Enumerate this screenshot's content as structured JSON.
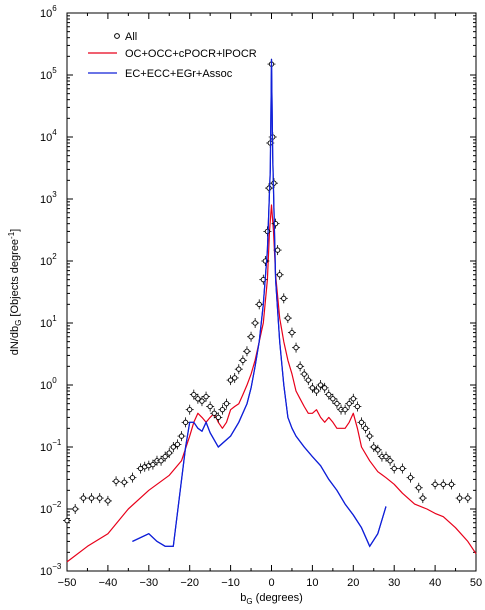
{
  "chart_data": {
    "type": "scatter",
    "xlabel": "b",
    "xlabel_sub": "G",
    "xlabel_suffix": " (degrees)",
    "ylabel_main": "dN/db",
    "ylabel_sub": "G",
    "ylabel_rest": " [Objects degree",
    "ylabel_sup": "-1",
    "ylabel_end": "]",
    "xlim": [
      -50,
      50
    ],
    "ylim": [
      0.001,
      1000000
    ],
    "yscale": "log",
    "grid": false,
    "legend_position": "top-left",
    "x_ticks": [
      -50,
      -40,
      -30,
      -20,
      -10,
      0,
      10,
      20,
      30,
      40,
      50
    ],
    "x_tick_labels": [
      "−50",
      "−40",
      "−30",
      "−20",
      "−10",
      "0",
      "10",
      "20",
      "30",
      "40",
      "50"
    ],
    "y_ticks": [
      {
        "value": 0.001,
        "base": "10",
        "exp": "−3"
      },
      {
        "value": 0.01,
        "base": "10",
        "exp": "−2"
      },
      {
        "value": 0.1,
        "base": "10",
        "exp": "−1"
      },
      {
        "value": 1,
        "base": "10",
        "exp": "0"
      },
      {
        "value": 10,
        "base": "10",
        "exp": "1"
      },
      {
        "value": 100,
        "base": "10",
        "exp": "2"
      },
      {
        "value": 1000,
        "base": "10",
        "exp": "3"
      },
      {
        "value": 10000,
        "base": "10",
        "exp": "4"
      },
      {
        "value": 100000,
        "base": "10",
        "exp": "5"
      },
      {
        "value": 1000000,
        "base": "10",
        "exp": "6"
      }
    ],
    "series": [
      {
        "name": "All",
        "style": "points",
        "color": "#000000",
        "points": [
          [
            -50,
            0.0065
          ],
          [
            -48,
            0.01
          ],
          [
            -46,
            0.015
          ],
          [
            -44,
            0.015
          ],
          [
            -42,
            0.015
          ],
          [
            -40,
            0.0135
          ],
          [
            -38,
            0.028
          ],
          [
            -36,
            0.027
          ],
          [
            -34,
            0.032
          ],
          [
            -32,
            0.045
          ],
          [
            -31,
            0.048
          ],
          [
            -30,
            0.05
          ],
          [
            -29,
            0.052
          ],
          [
            -28,
            0.06
          ],
          [
            -27,
            0.06
          ],
          [
            -26,
            0.07
          ],
          [
            -25,
            0.08
          ],
          [
            -24,
            0.1
          ],
          [
            -23,
            0.11
          ],
          [
            -22,
            0.15
          ],
          [
            -21,
            0.25
          ],
          [
            -20,
            0.4
          ],
          [
            -19,
            0.7
          ],
          [
            -18,
            0.6
          ],
          [
            -17,
            0.55
          ],
          [
            -16,
            0.65
          ],
          [
            -15,
            0.45
          ],
          [
            -14,
            0.35
          ],
          [
            -13,
            0.3
          ],
          [
            -12,
            0.4
          ],
          [
            -11,
            0.5
          ],
          [
            -10,
            1.2
          ],
          [
            -9,
            1.3
          ],
          [
            -8,
            1.8
          ],
          [
            -7,
            2.5
          ],
          [
            -6,
            3.5
          ],
          [
            -5,
            6.0
          ],
          [
            -4,
            10
          ],
          [
            -3,
            20
          ],
          [
            -2,
            50
          ],
          [
            -1.5,
            100
          ],
          [
            -1,
            300
          ],
          [
            -0.6,
            1500
          ],
          [
            -0.3,
            8000
          ],
          [
            0,
            150000
          ],
          [
            0.3,
            10000
          ],
          [
            0.6,
            1800
          ],
          [
            1,
            400
          ],
          [
            1.5,
            150
          ],
          [
            2,
            60
          ],
          [
            3,
            25
          ],
          [
            4,
            12
          ],
          [
            5,
            7
          ],
          [
            6,
            4
          ],
          [
            7,
            2
          ],
          [
            8,
            1.5
          ],
          [
            9,
            1.2
          ],
          [
            10,
            0.9
          ],
          [
            11,
            0.8
          ],
          [
            12,
            1.0
          ],
          [
            13,
            0.9
          ],
          [
            14,
            0.7
          ],
          [
            15,
            0.6
          ],
          [
            16,
            0.5
          ],
          [
            17,
            0.4
          ],
          [
            18,
            0.4
          ],
          [
            19,
            0.5
          ],
          [
            20,
            0.6
          ],
          [
            21,
            0.45
          ],
          [
            22,
            0.25
          ],
          [
            23,
            0.2
          ],
          [
            24,
            0.15
          ],
          [
            25,
            0.1
          ],
          [
            26,
            0.09
          ],
          [
            27,
            0.07
          ],
          [
            28,
            0.07
          ],
          [
            29,
            0.06
          ],
          [
            30,
            0.045
          ],
          [
            32,
            0.045
          ],
          [
            34,
            0.032
          ],
          [
            36,
            0.022
          ],
          [
            37,
            0.015
          ],
          [
            40,
            0.025
          ],
          [
            42,
            0.025
          ],
          [
            44,
            0.025
          ],
          [
            46,
            0.015
          ],
          [
            48,
            0.015
          ]
        ]
      },
      {
        "name": "OC+OCC+cPOCR+lPOCR",
        "style": "line",
        "color": "#e8001a",
        "points": [
          [
            -50,
            0.0014
          ],
          [
            -45,
            0.0025
          ],
          [
            -40,
            0.004
          ],
          [
            -35,
            0.01
          ],
          [
            -30,
            0.02
          ],
          [
            -25,
            0.035
          ],
          [
            -22,
            0.06
          ],
          [
            -20,
            0.15
          ],
          [
            -19,
            0.25
          ],
          [
            -18,
            0.35
          ],
          [
            -17,
            0.3
          ],
          [
            -16,
            0.25
          ],
          [
            -15,
            0.3
          ],
          [
            -14,
            0.35
          ],
          [
            -13,
            0.25
          ],
          [
            -12,
            0.2
          ],
          [
            -11,
            0.25
          ],
          [
            -10,
            0.4
          ],
          [
            -9,
            0.45
          ],
          [
            -8,
            0.5
          ],
          [
            -7,
            0.7
          ],
          [
            -6,
            1.0
          ],
          [
            -5,
            1.5
          ],
          [
            -4,
            2.5
          ],
          [
            -3,
            5
          ],
          [
            -2,
            10
          ],
          [
            -1,
            50
          ],
          [
            -0.5,
            300
          ],
          [
            0,
            800
          ],
          [
            0.5,
            300
          ],
          [
            1,
            60
          ],
          [
            2,
            12
          ],
          [
            3,
            5
          ],
          [
            4,
            2.5
          ],
          [
            5,
            1.5
          ],
          [
            6,
            0.8
          ],
          [
            7,
            0.6
          ],
          [
            8,
            0.45
          ],
          [
            9,
            0.35
          ],
          [
            10,
            0.35
          ],
          [
            11,
            0.4
          ],
          [
            12,
            0.3
          ],
          [
            13,
            0.25
          ],
          [
            14,
            0.3
          ],
          [
            15,
            0.25
          ],
          [
            16,
            0.2
          ],
          [
            17,
            0.2
          ],
          [
            18,
            0.2
          ],
          [
            19,
            0.25
          ],
          [
            20,
            0.35
          ],
          [
            21,
            0.2
          ],
          [
            22,
            0.1
          ],
          [
            24,
            0.06
          ],
          [
            26,
            0.04
          ],
          [
            28,
            0.032
          ],
          [
            30,
            0.025
          ],
          [
            32,
            0.018
          ],
          [
            35,
            0.012
          ],
          [
            38,
            0.01
          ],
          [
            40,
            0.0085
          ],
          [
            42,
            0.0075
          ],
          [
            45,
            0.005
          ],
          [
            48,
            0.003
          ],
          [
            50,
            0.0019
          ]
        ]
      },
      {
        "name": "EC+ECC+EGr+Assoc",
        "style": "line",
        "color": "#1020d8",
        "points": [
          [
            -34,
            0.003
          ],
          [
            -30,
            0.004
          ],
          [
            -28,
            0.003
          ],
          [
            -26,
            0.0025
          ],
          [
            -24,
            0.0025
          ],
          [
            -21,
            0.1
          ],
          [
            -20,
            0.25
          ],
          [
            -19,
            0.25
          ],
          [
            -18,
            0.2
          ],
          [
            -17,
            0.18
          ],
          [
            -16,
            0.25
          ],
          [
            -15,
            0.17
          ],
          [
            -13,
            0.1
          ],
          [
            -10,
            0.15
          ],
          [
            -8,
            0.25
          ],
          [
            -6,
            0.5
          ],
          [
            -5,
            0.9
          ],
          [
            -4,
            2
          ],
          [
            -3,
            5
          ],
          [
            -2,
            20
          ],
          [
            -1,
            150
          ],
          [
            -0.3,
            3000
          ],
          [
            0,
            180000
          ],
          [
            0.3,
            5000
          ],
          [
            1,
            50
          ],
          [
            2,
            5
          ],
          [
            3,
            1
          ],
          [
            4,
            0.3
          ],
          [
            5,
            0.2
          ],
          [
            6,
            0.15
          ],
          [
            8,
            0.1
          ],
          [
            10,
            0.07
          ],
          [
            12,
            0.05
          ],
          [
            14,
            0.03
          ],
          [
            16,
            0.02
          ],
          [
            18,
            0.012
          ],
          [
            20,
            0.008
          ],
          [
            22,
            0.005
          ],
          [
            24,
            0.0025
          ],
          [
            26,
            0.004
          ],
          [
            28,
            0.011
          ]
        ]
      }
    ]
  }
}
